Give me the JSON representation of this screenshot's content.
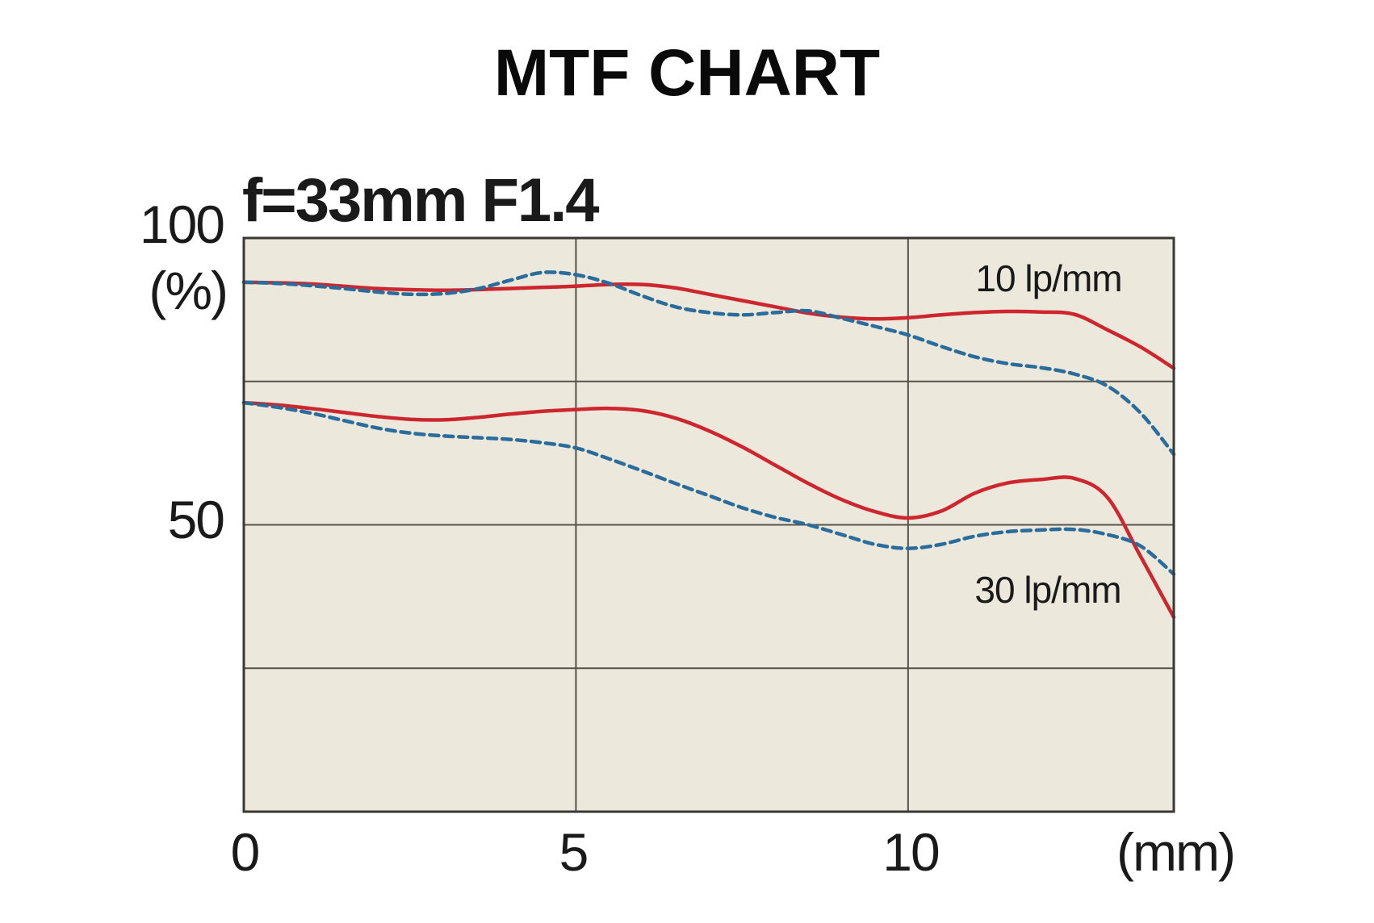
{
  "title": "MTF CHART",
  "colors": {
    "background": "#ffffff",
    "plot_background": "#ece8dc",
    "grid": "#57534c",
    "border": "#3a3834",
    "red_curve": "#cd262e",
    "blue_curve": "#2a6d9c",
    "text": "#111111"
  },
  "chart_data": {
    "type": "line",
    "title": "MTF CHART",
    "subtitle": "f=33mm F1.4",
    "xlabel": "(mm)",
    "ylabel": "(%)",
    "xlim": [
      0,
      14
    ],
    "ylim": [
      0,
      100
    ],
    "xticks": [
      {
        "value": 0,
        "label": "0"
      },
      {
        "value": 5,
        "label": "5"
      },
      {
        "value": 10,
        "label": "10"
      }
    ],
    "yticks": [
      {
        "value": 100,
        "label": "100"
      },
      {
        "value": 50,
        "label": "50"
      }
    ],
    "xgrid": [
      5,
      10
    ],
    "ygrid": [
      25,
      50,
      75
    ],
    "grid": true,
    "legend_position": "annotations inside plot",
    "annotations": [
      {
        "text": "10 lp/mm",
        "x": 12.1,
        "y": 93.0
      },
      {
        "text": "30 lp/mm",
        "x": 12.1,
        "y": 38.7
      }
    ],
    "x": [
      0,
      0.5,
      1,
      1.5,
      2,
      2.5,
      3,
      3.5,
      4,
      4.5,
      5,
      5.5,
      6,
      6.5,
      7,
      7.5,
      8,
      8.5,
      9,
      9.5,
      10,
      10.5,
      11,
      11.5,
      12,
      12.5,
      13,
      13.5,
      14
    ],
    "series": [
      {
        "name": "10 lp/mm",
        "line": "solid",
        "color": "#cd262e",
        "y": [
          92.3,
          92.2,
          92.0,
          91.6,
          91.2,
          91.0,
          90.9,
          91.0,
          91.2,
          91.4,
          91.6,
          91.9,
          91.9,
          91.3,
          90.2,
          89.1,
          88.0,
          86.9,
          86.2,
          85.9,
          86.1,
          86.6,
          87.0,
          87.2,
          87.1,
          86.7,
          84.0,
          81.0,
          77.3
        ]
      },
      {
        "name": "10 lp/mm",
        "line": "dashed",
        "color": "#2a6d9c",
        "y": [
          92.3,
          92.1,
          91.7,
          91.2,
          90.6,
          90.2,
          90.3,
          91.1,
          92.6,
          94.0,
          93.6,
          92.1,
          89.9,
          88.0,
          87.0,
          86.6,
          87.0,
          87.3,
          86.0,
          84.6,
          83.1,
          81.1,
          79.3,
          78.1,
          77.4,
          76.3,
          74.2,
          69.5,
          62.3
        ]
      },
      {
        "name": "30 lp/mm",
        "line": "solid",
        "color": "#cd262e",
        "y": [
          71.3,
          70.9,
          70.3,
          69.6,
          68.9,
          68.4,
          68.3,
          68.7,
          69.3,
          69.8,
          70.1,
          70.3,
          69.9,
          68.6,
          66.4,
          63.6,
          60.4,
          57.2,
          54.4,
          52.3,
          51.2,
          52.4,
          55.5,
          57.3,
          57.9,
          58.1,
          54.8,
          44.5,
          33.9
        ]
      },
      {
        "name": "30 lp/mm",
        "line": "dashed",
        "color": "#2a6d9c",
        "y": [
          71.3,
          70.5,
          69.5,
          68.2,
          66.9,
          66.0,
          65.5,
          65.2,
          64.9,
          64.3,
          63.4,
          61.5,
          59.4,
          57.2,
          55.1,
          53.0,
          51.3,
          50.0,
          48.3,
          46.6,
          45.9,
          46.6,
          48.0,
          48.8,
          49.1,
          49.2,
          48.3,
          46.3,
          41.4
        ]
      }
    ]
  }
}
